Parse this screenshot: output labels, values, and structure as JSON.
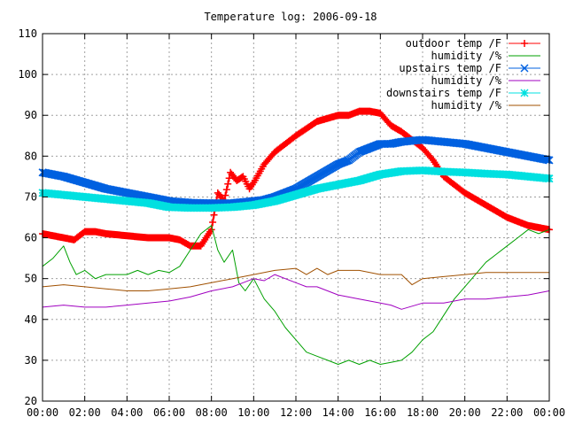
{
  "chart_data": {
    "type": "line",
    "title": "Temperature log: 2006-09-18",
    "xlabel": "",
    "ylabel": "",
    "xlim": [
      0,
      24
    ],
    "ylim": [
      20,
      110
    ],
    "x_tick_labels": [
      "00:00",
      "02:00",
      "04:00",
      "06:00",
      "08:00",
      "10:00",
      "12:00",
      "14:00",
      "16:00",
      "18:00",
      "20:00",
      "22:00",
      "00:00"
    ],
    "y_ticks": [
      20,
      30,
      40,
      50,
      60,
      70,
      80,
      90,
      100,
      110
    ],
    "grid": true,
    "legend_position": "top-right",
    "series": [
      {
        "name": "outdoor temp /F",
        "color": "#ff0000",
        "marker": "plus",
        "x": [
          0,
          1,
          1.5,
          2,
          2.5,
          3,
          4,
          5,
          6,
          6.5,
          7,
          7.5,
          8,
          8.3,
          8.6,
          8.9,
          9.2,
          9.5,
          9.8,
          10,
          10.5,
          11,
          12,
          13,
          14,
          14.5,
          15,
          15.5,
          16,
          16.5,
          17,
          17.5,
          18,
          18.5,
          19,
          20,
          21,
          22,
          23,
          24
        ],
        "values": [
          61,
          60,
          59.5,
          61.5,
          61.5,
          61,
          60.5,
          60,
          60,
          59.5,
          58,
          58,
          62,
          71,
          69,
          76,
          74,
          75,
          72,
          73.5,
          78,
          81,
          85,
          88.5,
          90,
          90,
          91,
          91,
          90.5,
          87.5,
          86,
          84,
          82,
          79,
          75,
          71,
          68,
          65,
          63,
          62
        ]
      },
      {
        "name": "humidity /%",
        "color": "#00a000",
        "marker": "none",
        "x": [
          0,
          0.5,
          1,
          1.3,
          1.6,
          2,
          2.5,
          3,
          3.5,
          4,
          4.5,
          5,
          5.5,
          6,
          6.5,
          7,
          7.5,
          8,
          8.3,
          8.6,
          9,
          9.3,
          9.6,
          10,
          10.5,
          11,
          11.5,
          12,
          12.5,
          13,
          13.5,
          14,
          14.5,
          15,
          15.5,
          16,
          16.5,
          17,
          17.5,
          18,
          18.5,
          19,
          19.5,
          20,
          20.5,
          21,
          21.5,
          22,
          22.5,
          23,
          23.5,
          24
        ],
        "values": [
          53,
          55,
          58,
          54,
          51,
          52,
          50,
          51,
          51,
          51,
          52,
          51,
          52,
          51.5,
          53,
          57,
          61,
          63,
          57,
          54,
          57,
          49,
          47,
          50,
          45,
          42,
          38,
          35,
          32,
          31,
          30,
          29,
          30,
          29,
          30,
          29,
          29.5,
          30,
          32,
          35,
          37,
          41,
          45,
          48,
          51,
          54,
          56,
          58,
          60,
          62,
          61,
          62
        ]
      },
      {
        "name": "upstairs temp /F",
        "color": "#0060e0",
        "marker": "cross",
        "x": [
          0,
          1,
          2,
          3,
          4,
          5,
          6,
          7,
          8,
          9,
          10,
          10.5,
          11,
          12,
          13,
          14,
          14.5,
          15,
          16,
          16.5,
          17,
          18,
          19,
          20,
          21,
          22,
          23,
          24
        ],
        "values": [
          76,
          75,
          73.5,
          72,
          71,
          70,
          69,
          68.6,
          68.5,
          68.5,
          69,
          69.3,
          70,
          72,
          75,
          78,
          79,
          81,
          83,
          83,
          83.5,
          84,
          83.5,
          83,
          82,
          81,
          80,
          79
        ]
      },
      {
        "name": "humidity /%",
        "color": "#a000c0",
        "marker": "none",
        "x": [
          0,
          1,
          2,
          3,
          4,
          5,
          6,
          7,
          8,
          9,
          9.5,
          10,
          10.5,
          11,
          12,
          12.5,
          13,
          14,
          15,
          16,
          16.5,
          17,
          18,
          19,
          20,
          21,
          22,
          23,
          24
        ],
        "values": [
          43,
          43.5,
          43,
          43,
          43.5,
          44,
          44.5,
          45.5,
          47,
          48,
          49,
          50,
          49.5,
          51,
          49,
          48,
          48,
          46,
          45,
          44,
          43.5,
          42.5,
          44,
          44,
          45,
          45,
          45.5,
          46,
          47
        ]
      },
      {
        "name": "downstairs temp /F",
        "color": "#00e0e0",
        "marker": "star",
        "x": [
          0,
          1,
          2,
          3,
          4,
          5,
          6,
          7,
          8,
          9,
          10,
          11,
          12,
          13,
          14,
          15,
          16,
          17,
          18,
          19,
          20,
          21,
          22,
          23,
          24
        ],
        "values": [
          71,
          70.5,
          70,
          69.5,
          69,
          68.5,
          67.5,
          67.3,
          67.3,
          67.5,
          68,
          69,
          70.5,
          72,
          73,
          74,
          75.5,
          76.3,
          76.5,
          76.2,
          76,
          75.7,
          75.5,
          75,
          74.5
        ]
      },
      {
        "name": "humidity /%",
        "color": "#a05000",
        "marker": "none",
        "x": [
          0,
          1,
          2,
          3,
          4,
          5,
          6,
          7,
          8,
          9,
          10,
          11,
          12,
          12.5,
          13,
          13.5,
          14,
          15,
          16,
          17,
          17.5,
          18,
          19,
          20,
          21,
          22,
          23,
          24
        ],
        "values": [
          48,
          48.5,
          48,
          47.5,
          47,
          47,
          47.5,
          48,
          49,
          50,
          51,
          52,
          52.5,
          51,
          52.5,
          51,
          52,
          52,
          51,
          51,
          48.5,
          50,
          50.5,
          51,
          51.5,
          51.5,
          51.5,
          51.5
        ]
      }
    ]
  }
}
